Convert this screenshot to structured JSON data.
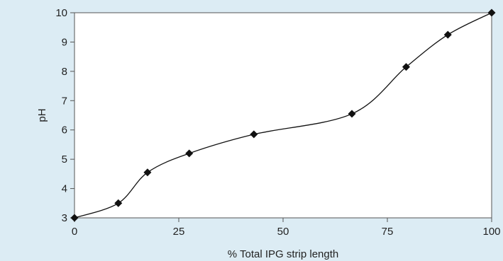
{
  "chart_data": {
    "type": "line",
    "title": "",
    "xlabel": "% Total IPG strip length",
    "ylabel": "pH",
    "xlim": [
      0,
      100
    ],
    "ylim": [
      3,
      10
    ],
    "x_ticks": [
      0,
      25,
      50,
      75,
      100
    ],
    "y_ticks": [
      3,
      4,
      5,
      6,
      7,
      8,
      9,
      10
    ],
    "x_tick_labels": [
      "0",
      "25",
      "50",
      "75",
      "100"
    ],
    "y_tick_labels": [
      "3",
      "4",
      "5",
      "6",
      "7",
      "8",
      "9",
      "10"
    ],
    "grid": false,
    "legend": "none",
    "series": [
      {
        "x": [
          0,
          10.5,
          17.5,
          27.5,
          43,
          66.5,
          79.5,
          89.5,
          100
        ],
        "y": [
          3.0,
          3.5,
          4.55,
          5.2,
          5.85,
          6.55,
          8.15,
          9.25,
          10.0
        ],
        "marker": "diamond",
        "smooth": true
      }
    ],
    "colors": {
      "background": "#dcecf4",
      "plot_area": "#ffffff",
      "axis": "#555555",
      "line": "#111111",
      "marker": "#111111"
    }
  }
}
